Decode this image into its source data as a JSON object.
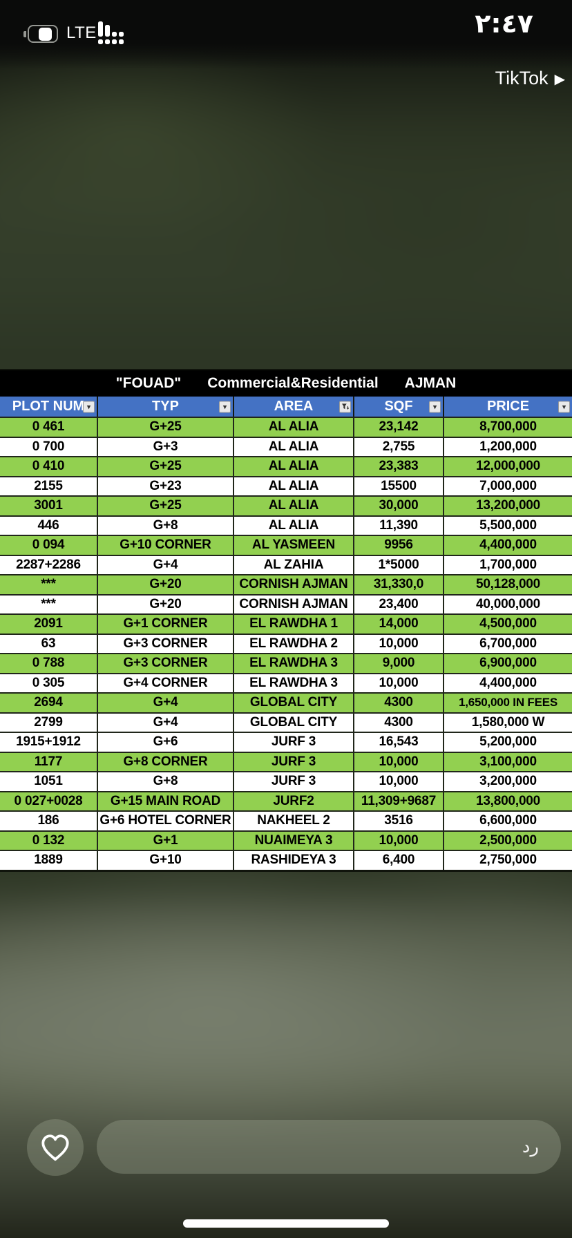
{
  "status_bar": {
    "time": "٢:٤٧",
    "network_label": "LTE",
    "screen_share_app": "TikTok",
    "play_glyph": "▶"
  },
  "spreadsheet": {
    "title": {
      "agent": "\"FOUAD\"",
      "category": "Commercial&Residential",
      "city": "AJMAN"
    },
    "columns": [
      {
        "label": "PLOT NUM",
        "filter": "dropdown"
      },
      {
        "label": "TYP",
        "filter": "dropdown"
      },
      {
        "label": "AREA",
        "filter": "filter-sort"
      },
      {
        "label": "SQF",
        "filter": "dropdown"
      },
      {
        "label": "PRICE",
        "filter": "dropdown"
      }
    ],
    "rows": [
      {
        "plot": "0 461",
        "typ": "G+25",
        "area": "AL ALIA",
        "sqf": "23,142",
        "price": "8,700,000",
        "highlight": true
      },
      {
        "plot": "0 700",
        "typ": "G+3",
        "area": "AL ALIA",
        "sqf": "2,755",
        "price": "1,200,000",
        "highlight": false
      },
      {
        "plot": "0 410",
        "typ": "G+25",
        "area": "AL ALIA",
        "sqf": "23,383",
        "price": "12,000,000",
        "highlight": true
      },
      {
        "plot": "2155",
        "typ": "G+23",
        "area": "AL ALIA",
        "sqf": "15500",
        "price": "7,000,000",
        "highlight": false
      },
      {
        "plot": "3001",
        "typ": "G+25",
        "area": "AL ALIA",
        "sqf": "30,000",
        "price": "13,200,000",
        "highlight": true
      },
      {
        "plot": "446",
        "typ": "G+8",
        "area": "AL ALIA",
        "sqf": "11,390",
        "price": "5,500,000",
        "highlight": false
      },
      {
        "plot": "0 094",
        "typ": "G+10 CORNER",
        "area": "AL YASMEEN",
        "sqf": "9956",
        "price": "4,400,000",
        "highlight": true
      },
      {
        "plot": "2287+2286",
        "typ": "G+4",
        "area": "AL ZAHIA",
        "sqf": "1*5000",
        "price": "1,700,000",
        "highlight": false
      },
      {
        "plot": "***",
        "typ": "G+20",
        "area": "CORNISH AJMAN",
        "sqf": "31,330,0",
        "price": "50,128,000",
        "highlight": true
      },
      {
        "plot": "***",
        "typ": "G+20",
        "area": "CORNISH AJMAN",
        "sqf": "23,400",
        "price": "40,000,000",
        "highlight": false
      },
      {
        "plot": "2091",
        "typ": "G+1 CORNER",
        "area": "EL RAWDHA 1",
        "sqf": "14,000",
        "price": "4,500,000",
        "highlight": true
      },
      {
        "plot": "63",
        "typ": "G+3 CORNER",
        "area": "EL RAWDHA 2",
        "sqf": "10,000",
        "price": "6,700,000",
        "highlight": false
      },
      {
        "plot": "0 788",
        "typ": "G+3 CORNER",
        "area": "EL RAWDHA 3",
        "sqf": "9,000",
        "price": "6,900,000",
        "highlight": true
      },
      {
        "plot": "0 305",
        "typ": "G+4 CORNER",
        "area": "EL RAWDHA 3",
        "sqf": "10,000",
        "price": "4,400,000",
        "highlight": false
      },
      {
        "plot": "2694",
        "typ": "G+4",
        "area": "GLOBAL CITY",
        "sqf": "4300",
        "price": "1,650,000  IN FEES",
        "highlight": true
      },
      {
        "plot": "2799",
        "typ": "G+4",
        "area": "GLOBAL CITY",
        "sqf": "4300",
        "price": "1,580,000 W",
        "highlight": false
      },
      {
        "plot": "1915+1912",
        "typ": "G+6",
        "area": "JURF 3",
        "sqf": "16,543",
        "price": "5,200,000",
        "highlight": false
      },
      {
        "plot": "1177",
        "typ": "G+8 CORNER",
        "area": "JURF 3",
        "sqf": "10,000",
        "price": "3,100,000",
        "highlight": true
      },
      {
        "plot": "1051",
        "typ": "G+8",
        "area": "JURF 3",
        "sqf": "10,000",
        "price": "3,200,000",
        "highlight": false
      },
      {
        "plot": "0 027+0028",
        "typ": "G+15 MAIN ROAD",
        "area": "JURF2",
        "sqf": "11,309+9687",
        "price": "13,800,000",
        "highlight": true
      },
      {
        "plot": "186",
        "typ": "G+6  HOTEL CORNER",
        "area": "NAKHEEL 2",
        "sqf": "3516",
        "price": "6,600,000",
        "highlight": false
      },
      {
        "plot": "0 132",
        "typ": "G+1",
        "area": "NUAIMEYA 3",
        "sqf": "10,000",
        "price": "2,500,000",
        "highlight": true
      },
      {
        "plot": "1889",
        "typ": "G+10",
        "area": "RASHIDEYA  3",
        "sqf": "6,400",
        "price": "2,750,000",
        "highlight": false
      }
    ]
  },
  "composer": {
    "reply_placeholder": "رد"
  },
  "colors": {
    "header_blue": "#4472C4",
    "row_green": "#92D050",
    "row_white": "#FFFFFF",
    "title_bar": "#000000"
  }
}
